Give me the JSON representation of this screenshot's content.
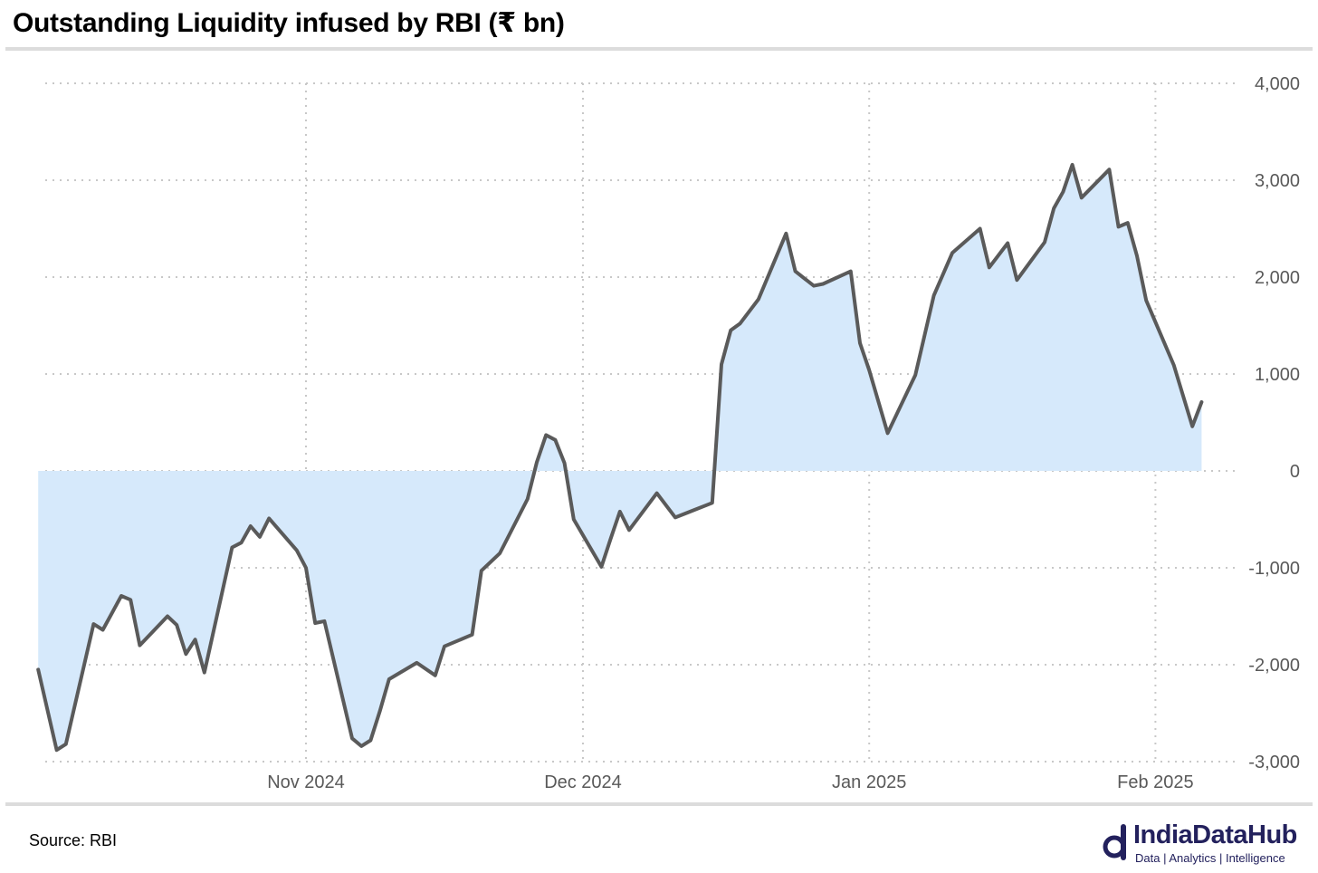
{
  "header": {
    "title": "Outstanding Liquidity infused by RBI (₹ bn)"
  },
  "footer": {
    "source": "Source: RBI",
    "brand_name": "IndiaDataHub",
    "brand_tagline": "Data | Analytics | Intelligence",
    "brand_color": "#23215d"
  },
  "chart_data": {
    "type": "area",
    "title": "Outstanding Liquidity infused by RBI (₹ bn)",
    "ylim": [
      -3000,
      4000
    ],
    "yticks": [
      4000,
      3000,
      2000,
      1000,
      0,
      -1000,
      -2000,
      -3000
    ],
    "ytick_labels": [
      "4,000",
      "3,000",
      "2,000",
      "1,000",
      "0",
      "-1,000",
      "-2,000",
      "-3,000"
    ],
    "xlim": [
      "2024-10-02",
      "2025-02-07"
    ],
    "xticks": [
      "2024-11-01",
      "2024-12-01",
      "2025-01-01",
      "2025-02-01"
    ],
    "xtick_labels": [
      "Nov 2024",
      "Dec 2024",
      "Jan 2025",
      "Feb 2025"
    ],
    "grid": true,
    "legend": "none",
    "line_color": "#5a5a5a",
    "fill_color": "#d6e9fb",
    "series": [
      {
        "values": [
          [
            "2024-10-03",
            -2050
          ],
          [
            "2024-10-05",
            -2880
          ],
          [
            "2024-10-06",
            -2820
          ],
          [
            "2024-10-09",
            -1580
          ],
          [
            "2024-10-10",
            -1640
          ],
          [
            "2024-10-12",
            -1290
          ],
          [
            "2024-10-13",
            -1330
          ],
          [
            "2024-10-14",
            -1800
          ],
          [
            "2024-10-17",
            -1500
          ],
          [
            "2024-10-18",
            -1590
          ],
          [
            "2024-10-19",
            -1890
          ],
          [
            "2024-10-20",
            -1740
          ],
          [
            "2024-10-21",
            -2080
          ],
          [
            "2024-10-24",
            -790
          ],
          [
            "2024-10-25",
            -740
          ],
          [
            "2024-10-26",
            -570
          ],
          [
            "2024-10-27",
            -680
          ],
          [
            "2024-10-28",
            -490
          ],
          [
            "2024-10-31",
            -820
          ],
          [
            "2024-11-01",
            -1000
          ],
          [
            "2024-11-02",
            -1570
          ],
          [
            "2024-11-03",
            -1550
          ],
          [
            "2024-11-06",
            -2760
          ],
          [
            "2024-11-07",
            -2840
          ],
          [
            "2024-11-08",
            -2780
          ],
          [
            "2024-11-09",
            -2480
          ],
          [
            "2024-11-10",
            -2150
          ],
          [
            "2024-11-13",
            -1980
          ],
          [
            "2024-11-15",
            -2110
          ],
          [
            "2024-11-16",
            -1810
          ],
          [
            "2024-11-19",
            -1690
          ],
          [
            "2024-11-20",
            -1030
          ],
          [
            "2024-11-22",
            -850
          ],
          [
            "2024-11-25",
            -290
          ],
          [
            "2024-11-26",
            90
          ],
          [
            "2024-11-27",
            370
          ],
          [
            "2024-11-28",
            320
          ],
          [
            "2024-11-29",
            80
          ],
          [
            "2024-11-30",
            -500
          ],
          [
            "2024-12-03",
            -990
          ],
          [
            "2024-12-04",
            -700
          ],
          [
            "2024-12-05",
            -420
          ],
          [
            "2024-12-06",
            -610
          ],
          [
            "2024-12-09",
            -230
          ],
          [
            "2024-12-11",
            -480
          ],
          [
            "2024-12-15",
            -330
          ],
          [
            "2024-12-16",
            1100
          ],
          [
            "2024-12-17",
            1450
          ],
          [
            "2024-12-18",
            1520
          ],
          [
            "2024-12-20",
            1770
          ],
          [
            "2024-12-23",
            2450
          ],
          [
            "2024-12-24",
            2060
          ],
          [
            "2024-12-26",
            1910
          ],
          [
            "2024-12-27",
            1930
          ],
          [
            "2024-12-30",
            2060
          ],
          [
            "2024-12-31",
            1320
          ],
          [
            "2025-01-01",
            1040
          ],
          [
            "2025-01-03",
            390
          ],
          [
            "2025-01-06",
            990
          ],
          [
            "2025-01-08",
            1810
          ],
          [
            "2025-01-10",
            2250
          ],
          [
            "2025-01-13",
            2500
          ],
          [
            "2025-01-14",
            2100
          ],
          [
            "2025-01-16",
            2350
          ],
          [
            "2025-01-17",
            1970
          ],
          [
            "2025-01-20",
            2360
          ],
          [
            "2025-01-21",
            2710
          ],
          [
            "2025-01-22",
            2880
          ],
          [
            "2025-01-23",
            3160
          ],
          [
            "2025-01-24",
            2820
          ],
          [
            "2025-01-27",
            3110
          ],
          [
            "2025-01-28",
            2520
          ],
          [
            "2025-01-29",
            2560
          ],
          [
            "2025-01-30",
            2220
          ],
          [
            "2025-01-31",
            1760
          ],
          [
            "2025-02-03",
            1090
          ],
          [
            "2025-02-05",
            460
          ],
          [
            "2025-02-06",
            710
          ]
        ]
      }
    ]
  }
}
